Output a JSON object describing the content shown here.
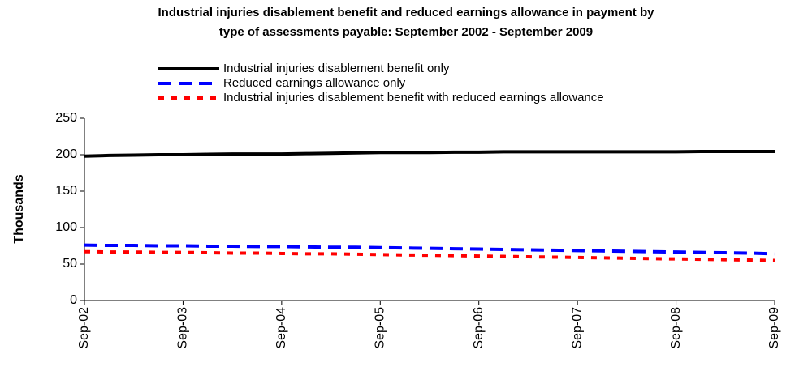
{
  "chart_data": {
    "type": "line",
    "title": [
      "Industrial injuries disablement benefit and reduced earnings allowance in payment by",
      "type of assessments payable: September 2002 - September 2009"
    ],
    "y_label": "Thousands",
    "categories": [
      "Sep-02",
      null,
      null,
      null,
      "Sep-03",
      null,
      null,
      null,
      "Sep-04",
      null,
      null,
      null,
      "Sep-05",
      null,
      null,
      null,
      "Sep-06",
      null,
      null,
      null,
      "Sep-07",
      null,
      null,
      null,
      "Sep-08",
      null,
      null,
      null,
      "Sep-09"
    ],
    "series": [
      {
        "name": "Industrial injuries disablement benefit only",
        "color": "#000000",
        "line_style": "solid",
        "values": [
          198,
          199,
          199.5,
          200,
          200,
          200.5,
          201,
          201,
          201,
          201.5,
          202,
          202.5,
          203,
          203,
          203,
          203.5,
          203.5,
          204,
          204,
          204,
          204,
          204,
          204,
          204,
          204,
          204.5,
          204.5,
          204.5,
          204.5
        ]
      },
      {
        "name": "Reduced earnings allowance only",
        "color": "#0000ff",
        "line_style": "dashed",
        "values": [
          76,
          75.5,
          75.5,
          75,
          75,
          74.5,
          74.5,
          74,
          74,
          73.5,
          73,
          73,
          72.5,
          72,
          71.5,
          71,
          70.5,
          70,
          69.5,
          69,
          68.5,
          68,
          67.5,
          67,
          66.5,
          66,
          65.5,
          65,
          64
        ]
      },
      {
        "name": "Industrial injuries disablement benefit with reduced earnings allowance",
        "color": "#ff0000",
        "line_style": "dotted",
        "values": [
          67,
          66.5,
          66.5,
          66,
          66,
          65.5,
          65,
          65,
          64.5,
          64,
          64,
          63.5,
          63,
          62.5,
          62,
          61.5,
          61,
          60.5,
          60,
          59.5,
          59,
          58.5,
          58,
          57.5,
          57,
          56.5,
          56,
          55.5,
          55
        ]
      }
    ],
    "ylim": [
      0,
      250
    ],
    "yticks": [
      0,
      50,
      100,
      150,
      200,
      250
    ]
  }
}
